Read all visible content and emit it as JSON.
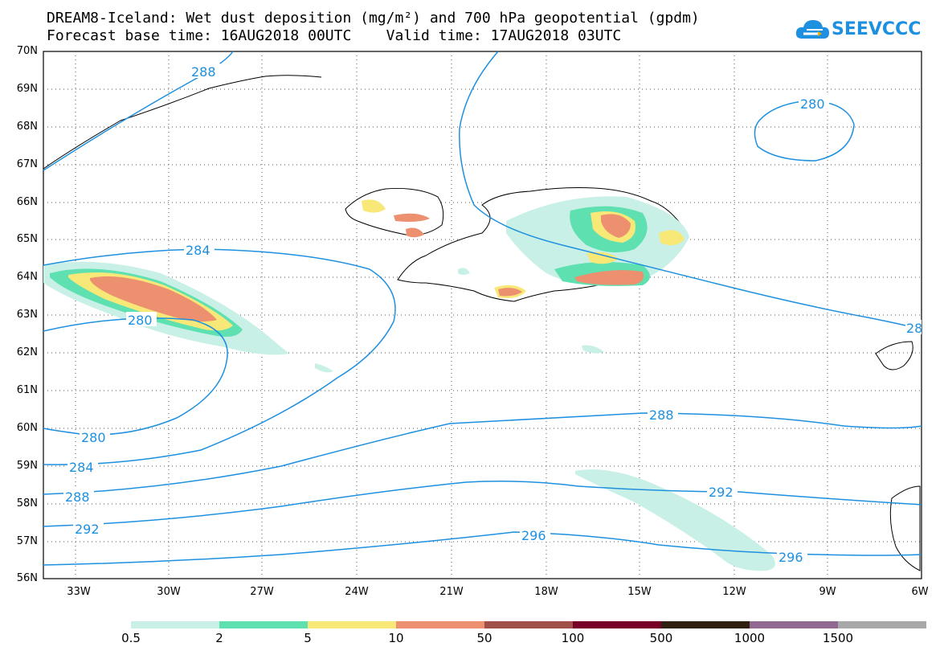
{
  "header": {
    "line1": "DREAM8-Iceland: Wet dust deposition (mg/m²) and 700 hPa geopotential (gpdm)",
    "line2": "Forecast base time: 16AUG2018 00UTC    Valid time: 17AUG2018 03UTC"
  },
  "logo": {
    "text": "SEEVCCC",
    "icon": "cloud-icon",
    "color": "#1e90e0"
  },
  "axes": {
    "lat_labels": [
      "70N",
      "69N",
      "68N",
      "67N",
      "66N",
      "65N",
      "64N",
      "63N",
      "62N",
      "61N",
      "60N",
      "59N",
      "58N",
      "57N",
      "56N"
    ],
    "lon_labels": [
      "33W",
      "30W",
      "27W",
      "24W",
      "21W",
      "18W",
      "15W",
      "12W",
      "9W",
      "6W"
    ]
  },
  "contour_labels": [
    "288",
    "280",
    "284",
    "280",
    "280",
    "284",
    "288",
    "292",
    "288",
    "292",
    "296",
    "296",
    "28"
  ],
  "legend": {
    "labels": [
      "0.5",
      "2",
      "5",
      "10",
      "50",
      "100",
      "500",
      "1000",
      "1500"
    ],
    "colors": [
      "#c8f0e6",
      "#5ee0b0",
      "#f8e878",
      "#ec9070",
      "#a05048",
      "#780028",
      "#302010",
      "#906890",
      "#a8a8a8"
    ]
  }
}
